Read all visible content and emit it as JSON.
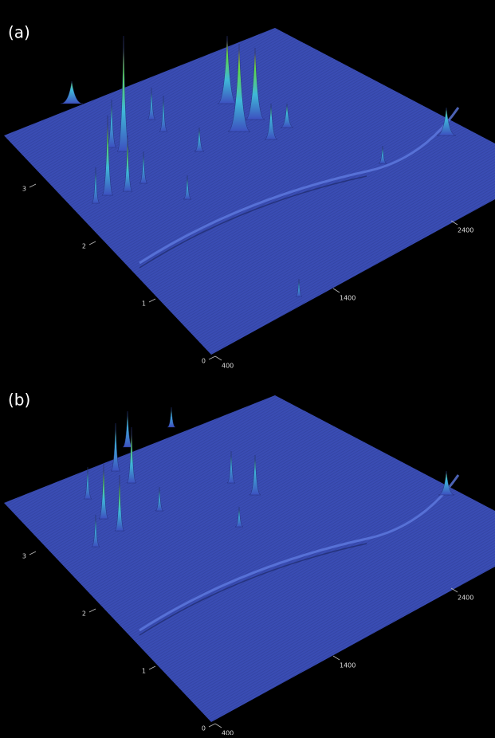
{
  "chart_data": [
    {
      "type": "surface",
      "label": "(a)",
      "xlim": [
        400,
        2400
      ],
      "xticks": [
        400,
        1400,
        2400
      ],
      "ylim": [
        0,
        3
      ],
      "yticks": [
        0,
        1,
        2,
        3
      ]
    },
    {
      "type": "surface",
      "label": "(b)",
      "xlim": [
        400,
        2400
      ],
      "xticks": [
        400,
        1400,
        2400
      ],
      "ylim": [
        0,
        3
      ],
      "yticks": [
        0,
        1,
        2,
        3
      ]
    }
  ]
}
